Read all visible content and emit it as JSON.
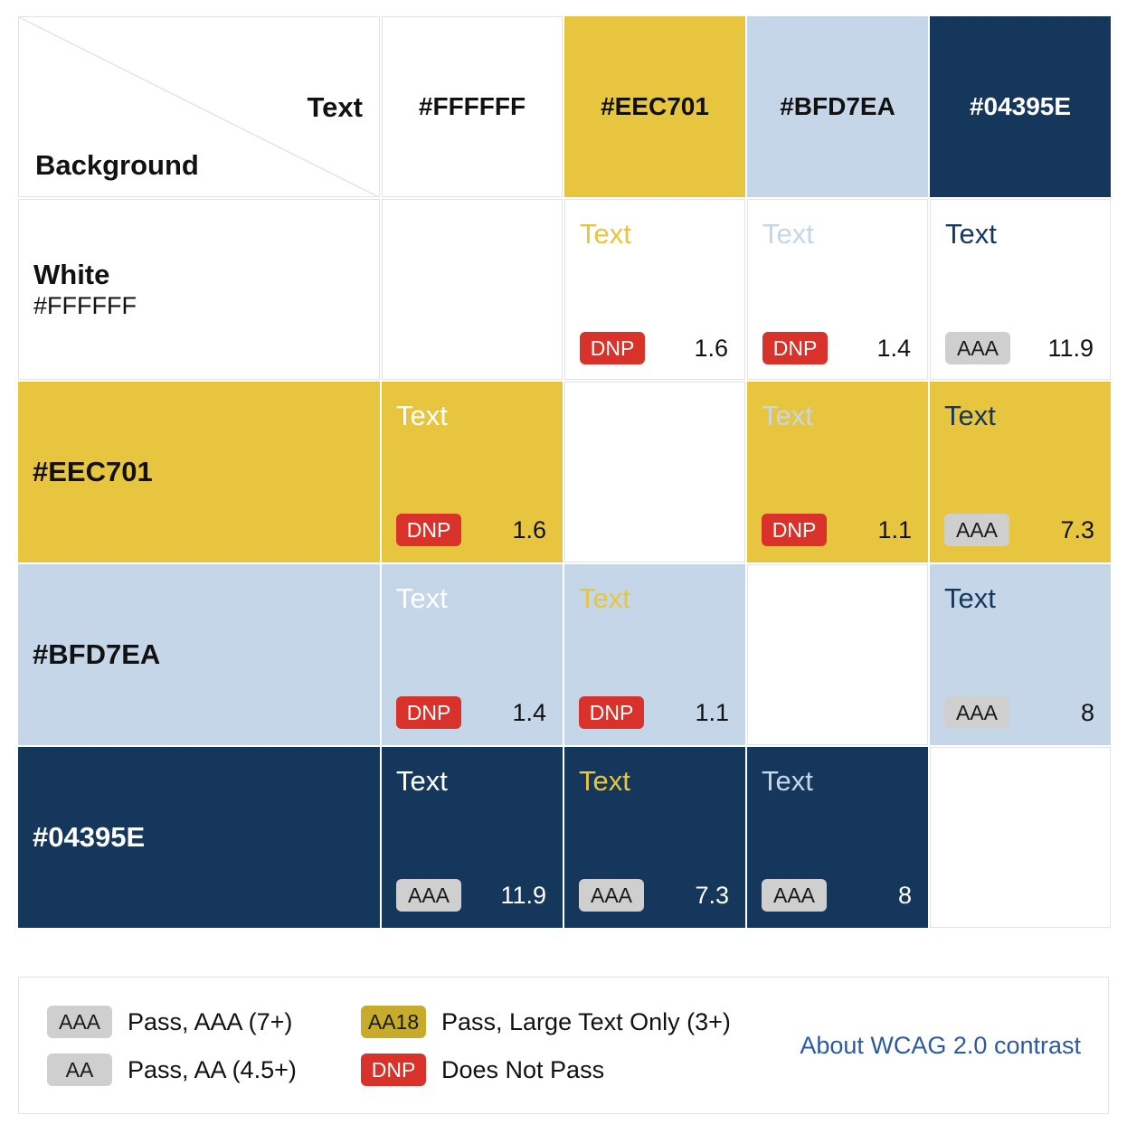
{
  "header": {
    "text_label": "Text",
    "background_label": "Background",
    "columns": [
      {
        "label": "#FFFFFF",
        "bg": "#FFFFFF",
        "fg": "#111111"
      },
      {
        "label": "#EEC701",
        "bg": "#E8C53F",
        "fg": "#111111"
      },
      {
        "label": "#BFD7EA",
        "bg": "#C5D6E8",
        "fg": "#111111"
      },
      {
        "label": "#04395E",
        "bg": "#16375C",
        "fg": "#FFFFFF"
      }
    ]
  },
  "rows": [
    {
      "name": "White",
      "hex": "#FFFFFF",
      "bg": "#FFFFFF",
      "fg": "#111111",
      "cells": [
        {
          "empty": true
        },
        {
          "sample": "Text",
          "text_color": "#E8C53F",
          "badge": "DNP",
          "ratio": "1.6"
        },
        {
          "sample": "Text",
          "text_color": "#C5D6E8",
          "badge": "DNP",
          "ratio": "1.4"
        },
        {
          "sample": "Text",
          "text_color": "#16375C",
          "badge": "AAA",
          "ratio": "11.9"
        }
      ]
    },
    {
      "name": "#EEC701",
      "hex": "",
      "bg": "#E8C53F",
      "fg": "#111111",
      "cells": [
        {
          "sample": "Text",
          "text_color": "#FFFFFF",
          "badge": "DNP",
          "ratio": "1.6"
        },
        {
          "empty": true
        },
        {
          "sample": "Text",
          "text_color": "#C5D6E8",
          "badge": "DNP",
          "ratio": "1.1"
        },
        {
          "sample": "Text",
          "text_color": "#16375C",
          "badge": "AAA",
          "ratio": "7.3"
        }
      ]
    },
    {
      "name": "#BFD7EA",
      "hex": "",
      "bg": "#C5D6E8",
      "fg": "#111111",
      "cells": [
        {
          "sample": "Text",
          "text_color": "#FFFFFF",
          "badge": "DNP",
          "ratio": "1.4"
        },
        {
          "sample": "Text",
          "text_color": "#E8C53F",
          "badge": "DNP",
          "ratio": "1.1"
        },
        {
          "empty": true
        },
        {
          "sample": "Text",
          "text_color": "#16375C",
          "badge": "AAA",
          "ratio": "8"
        }
      ]
    },
    {
      "name": "#04395E",
      "hex": "",
      "bg": "#16375C",
      "fg": "#FFFFFF",
      "cells": [
        {
          "sample": "Text",
          "text_color": "#FFFFFF",
          "badge": "AAA",
          "ratio": "11.9"
        },
        {
          "sample": "Text",
          "text_color": "#E8C53F",
          "badge": "AAA",
          "ratio": "7.3"
        },
        {
          "sample": "Text",
          "text_color": "#C5D6E8",
          "badge": "AAA",
          "ratio": "8"
        },
        {
          "empty": true
        }
      ]
    }
  ],
  "legend": {
    "items": [
      {
        "badge": "AAA",
        "text": "Pass, AAA (7+)",
        "style": "aaa"
      },
      {
        "badge": "AA",
        "text": "Pass, AA (4.5+)",
        "style": "aaa"
      },
      {
        "badge": "AA18",
        "text": "Pass, Large Text Only (3+)",
        "style": "aa18"
      },
      {
        "badge": "DNP",
        "text": "Does Not Pass",
        "style": "dnp"
      }
    ],
    "link": "About WCAG 2.0 contrast"
  }
}
